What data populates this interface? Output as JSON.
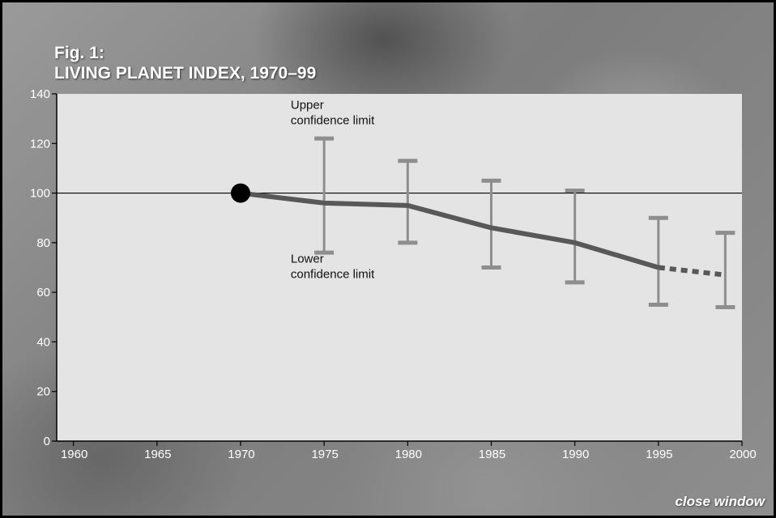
{
  "title": {
    "line1": "Fig. 1:",
    "line2_bold": "LIVING PLANET INDEX,",
    "line2_regular": " 1970–99"
  },
  "close_link": "close window",
  "colors": {
    "plot_bg": "#e4e4e4",
    "index_line": "#585858",
    "error_bars": "#8e8e8e",
    "reference_line": "#000000",
    "start_marker": "#000000",
    "tick_text": "#ffffff"
  },
  "chart_data": {
    "type": "line",
    "title": "LIVING PLANET INDEX, 1970–99",
    "xlabel": "",
    "ylabel": "",
    "xlim": [
      1959,
      2000
    ],
    "ylim": [
      0,
      140
    ],
    "x_ticks": [
      1960,
      1965,
      1970,
      1975,
      1980,
      1985,
      1990,
      1995,
      2000
    ],
    "y_ticks": [
      0,
      20,
      40,
      60,
      80,
      100,
      120,
      140
    ],
    "reference_line": 100,
    "grid": false,
    "start_point": {
      "x": 1970,
      "y": 100
    },
    "series": [
      {
        "x": [
          1970,
          1975,
          1980,
          1985,
          1990,
          1995
        ],
        "y": [
          100,
          96,
          95,
          86,
          80,
          70
        ],
        "style": "solid"
      },
      {
        "x": [
          1995,
          1999
        ],
        "y": [
          70,
          67
        ],
        "style": "dashed"
      }
    ],
    "error_bars": [
      {
        "x": 1975,
        "lower": 76,
        "upper": 122
      },
      {
        "x": 1980,
        "lower": 80,
        "upper": 113
      },
      {
        "x": 1985,
        "lower": 70,
        "upper": 105
      },
      {
        "x": 1990,
        "lower": 64,
        "upper": 101
      },
      {
        "x": 1995,
        "lower": 55,
        "upper": 90
      },
      {
        "x": 1999,
        "lower": 54,
        "upper": 84
      }
    ],
    "annotations": [
      {
        "text_lines": [
          "Upper",
          "confidence limit"
        ],
        "x": 1973,
        "y": 134
      },
      {
        "text_lines": [
          "Lower",
          "confidence limit"
        ],
        "x": 1973,
        "y": 72
      }
    ]
  }
}
